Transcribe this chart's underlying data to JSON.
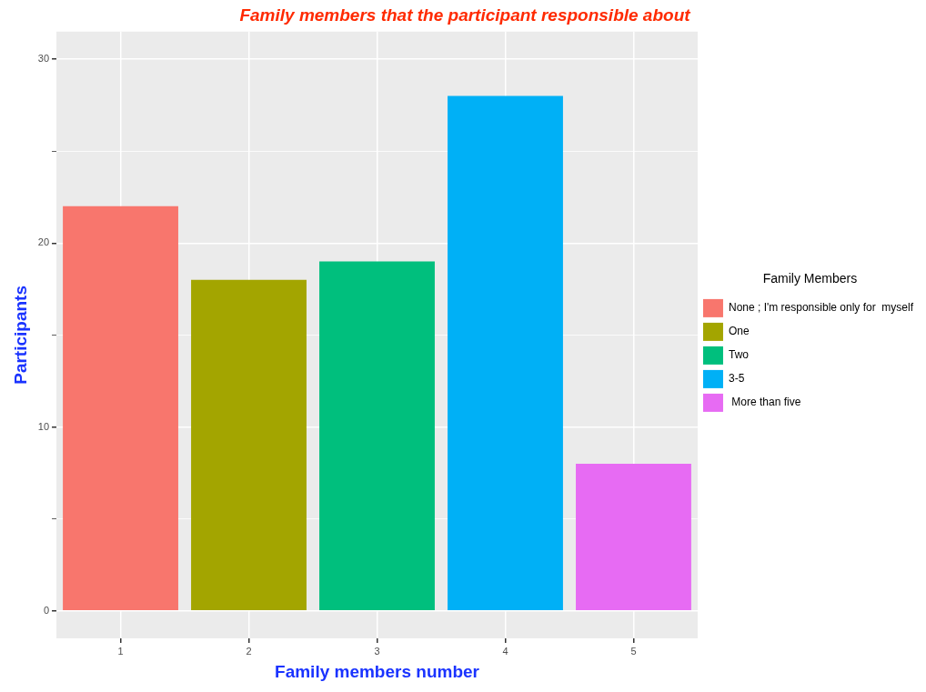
{
  "chart_data": {
    "type": "bar",
    "title": "Family members that the participant responsible about",
    "xlabel": "Family members number",
    "ylabel": "Participants",
    "legend_title": "Family Members",
    "categories": [
      "1",
      "2",
      "3",
      "4",
      "5"
    ],
    "series": [
      {
        "name": "None ; I'm responsible only for  myself",
        "color": "#f8766d",
        "values": [
          22,
          null,
          null,
          null,
          null
        ]
      },
      {
        "name": "One",
        "color": "#a3a500",
        "values": [
          null,
          18,
          null,
          null,
          null
        ]
      },
      {
        "name": "Two",
        "color": "#00bf7d",
        "values": [
          null,
          null,
          19,
          null,
          null
        ]
      },
      {
        "name": "3-5",
        "color": "#00b0f6",
        "values": [
          null,
          null,
          null,
          28,
          null
        ]
      },
      {
        "name": " More than five",
        "color": "#e76bf3",
        "values": [
          null,
          null,
          null,
          null,
          8
        ]
      }
    ],
    "ylim": [
      -1.5,
      31.5
    ],
    "yticks": [
      0,
      {
        "value": 5,
        "label": null
      },
      10,
      {
        "value": 15,
        "label": null
      },
      20,
      {
        "value": 25,
        "label": null
      },
      30
    ],
    "grid": true,
    "legend": "right"
  }
}
